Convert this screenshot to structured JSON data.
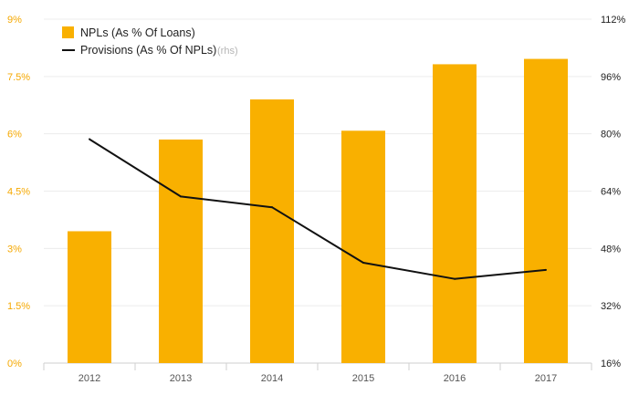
{
  "chart_data": {
    "type": "bar",
    "categories": [
      "2012",
      "2013",
      "2014",
      "2015",
      "2016",
      "2017"
    ],
    "series": [
      {
        "name": "NPLs (As % Of Loans)",
        "type": "bar",
        "axis": "left",
        "values": [
          3.45,
          5.85,
          6.9,
          6.08,
          7.82,
          7.96
        ]
      },
      {
        "name": "Provisions (As % Of NPLs)",
        "type": "line",
        "axis": "right",
        "values": [
          78.5,
          62.5,
          59.5,
          44.0,
          39.5,
          42.0
        ]
      }
    ],
    "y_left": {
      "range": [
        0,
        9
      ],
      "ticks": [
        0,
        1.5,
        3,
        4.5,
        6,
        7.5,
        9
      ],
      "tick_labels": [
        "0%",
        "1.5%",
        "3%",
        "4.5%",
        "6%",
        "7.5%",
        "9%"
      ]
    },
    "y_right": {
      "range": [
        16,
        112
      ],
      "ticks": [
        16,
        32,
        48,
        64,
        80,
        96,
        112
      ],
      "tick_labels": [
        "16%",
        "32%",
        "48%",
        "64%",
        "80%",
        "96%",
        "112%"
      ]
    },
    "legend": {
      "position": "top-left",
      "entries": [
        {
          "label": "NPLs (As % Of Loans)",
          "note": ""
        },
        {
          "label": "Provisions (As % Of NPLs)",
          "note": "(rhs)"
        }
      ]
    },
    "grid": true,
    "colors": {
      "bar": "#f9b000",
      "line": "#111111",
      "grid": "#ececec",
      "left_axis_text": "#f5a800",
      "right_axis_text": "#222222"
    }
  }
}
